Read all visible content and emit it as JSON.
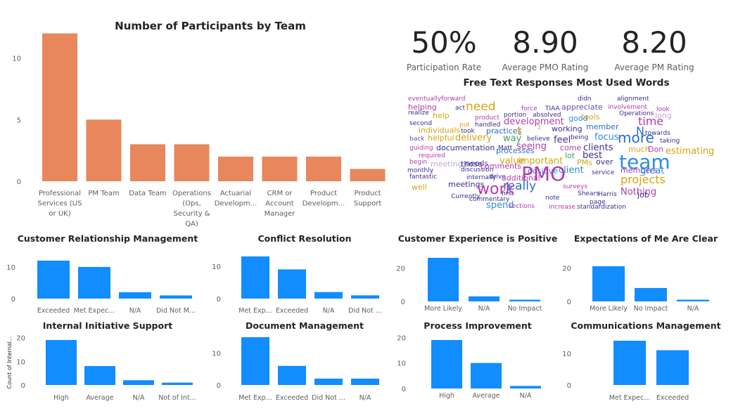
{
  "main_chart": {
    "type": "bar",
    "title": "Number of Participants by Team",
    "color": "#E8875B",
    "categories": [
      [
        "Professional",
        "Services (US",
        "or UK)"
      ],
      [
        "PM Team"
      ],
      [
        "Data Team"
      ],
      [
        "Operations",
        "(Ops,",
        "Security &",
        "QA)"
      ],
      [
        "Actuarial",
        "Developm..."
      ],
      [
        "CRM or",
        "Account",
        "Manager"
      ],
      [
        "Product",
        "Developm..."
      ],
      [
        "Product",
        "Support"
      ]
    ],
    "values": [
      12,
      5,
      3,
      3,
      2,
      2,
      2,
      1
    ],
    "yticks": [
      "0",
      "5",
      "10"
    ],
    "ylim": [
      0,
      13
    ]
  },
  "kpis": [
    {
      "value": "50%",
      "label": "Participation Rate"
    },
    {
      "value": "8.90",
      "label": "Average PMO Rating"
    },
    {
      "value": "8.20",
      "label": "Average PM Rating"
    }
  ],
  "word_cloud": {
    "title": "Free Text Responses Most Used Words",
    "words": [
      {
        "text": "eventually",
        "size": 9,
        "color": "#B33BAD"
      },
      {
        "text": "forward",
        "size": 9,
        "color": "#B33BAD"
      },
      {
        "text": "didn",
        "size": 9,
        "color": "#3B2D8F"
      },
      {
        "text": "alignment",
        "size": 9,
        "color": "#3B2D8F"
      },
      {
        "text": "helping",
        "size": 11,
        "color": "#B33BAD"
      },
      {
        "text": "act",
        "size": 9,
        "color": "#3B2D8F"
      },
      {
        "text": "need",
        "size": 17,
        "color": "#D4A514"
      },
      {
        "text": "force",
        "size": 9,
        "color": "#B33BAD"
      },
      {
        "text": "TIAA",
        "size": 9,
        "color": "#3B2D8F"
      },
      {
        "text": "appreciate",
        "size": 11,
        "color": "#6A4CA8"
      },
      {
        "text": "involvement",
        "size": 9,
        "color": "#B33BAD"
      },
      {
        "text": "look",
        "size": 9,
        "color": "#B33BAD"
      },
      {
        "text": "realize",
        "size": 9,
        "color": "#3B2D8F"
      },
      {
        "text": "help",
        "size": 11,
        "color": "#D4A514"
      },
      {
        "text": "product",
        "size": 9,
        "color": "#B33BAD"
      },
      {
        "text": "portion",
        "size": 9,
        "color": "#3B2D8F"
      },
      {
        "text": "absolved",
        "size": 9,
        "color": "#3B2D8F"
      },
      {
        "text": "tools",
        "size": 11,
        "color": "#D4A514"
      },
      {
        "text": "Operations",
        "size": 9,
        "color": "#3B2D8F"
      },
      {
        "text": "long",
        "size": 11,
        "color": "#C0A6E0"
      },
      {
        "text": "second",
        "size": 9,
        "color": "#3B2D8F"
      },
      {
        "text": "put",
        "size": 9,
        "color": "#D4A514"
      },
      {
        "text": "handled",
        "size": 9,
        "color": "#3B2D8F"
      },
      {
        "text": "development",
        "size": 13,
        "color": "#B33BAD"
      },
      {
        "text": "good",
        "size": 11,
        "color": "#2B8CE6"
      },
      {
        "text": "time",
        "size": 16,
        "color": "#B33BAD"
      },
      {
        "text": "individuals",
        "size": 11,
        "color": "#D4A514"
      },
      {
        "text": "took",
        "size": 9,
        "color": "#3B2D8F"
      },
      {
        "text": "practices",
        "size": 11,
        "color": "#2B6CC4"
      },
      {
        "text": "t",
        "size": 17,
        "color": "#D4A514"
      },
      {
        "text": "3",
        "size": 9,
        "color": "#D4A514"
      },
      {
        "text": "working",
        "size": 11,
        "color": "#3B2D8F"
      },
      {
        "text": "member",
        "size": 11,
        "color": "#2B6CC4"
      },
      {
        "text": "N",
        "size": 16,
        "color": "#2B6CC4"
      },
      {
        "text": "towards",
        "size": 9,
        "color": "#3B2D8F"
      },
      {
        "text": "back",
        "size": 9,
        "color": "#6A4CA8"
      },
      {
        "text": "helpful",
        "size": 11,
        "color": "#D4A514"
      },
      {
        "text": "delivery",
        "size": 13,
        "color": "#D4A514"
      },
      {
        "text": "way",
        "size": 13,
        "color": "#3DA55C"
      },
      {
        "text": "believe",
        "size": 9,
        "color": "#3B2D8F"
      },
      {
        "text": "being",
        "size": 9,
        "color": "#3B2D8F"
      },
      {
        "text": "focus",
        "size": 13,
        "color": "#2B8CE6"
      },
      {
        "text": "more",
        "size": 20,
        "color": "#2B6CC4"
      },
      {
        "text": "taking",
        "size": 9,
        "color": "#3B2D8F"
      },
      {
        "text": "guiding",
        "size": 9,
        "color": "#B33BAD"
      },
      {
        "text": "documentation",
        "size": 11,
        "color": "#3B2D8F"
      },
      {
        "text": "Matt",
        "size": 9,
        "color": "#3B2D8F"
      },
      {
        "text": "seeing",
        "size": 13,
        "color": "#B33BAD"
      },
      {
        "text": "feel",
        "size": 13,
        "color": "#3B2D8F"
      },
      {
        "text": "come",
        "size": 11,
        "color": "#B33BAD"
      },
      {
        "text": "clients",
        "size": 13,
        "color": "#3B2D8F"
      },
      {
        "text": "much",
        "size": 11,
        "color": "#D4A514"
      },
      {
        "text": "Don",
        "size": 11,
        "color": "#B33BAD"
      },
      {
        "text": "estimating",
        "size": 13,
        "color": "#D4A514"
      },
      {
        "text": "required",
        "size": 9,
        "color": "#B33BAD"
      },
      {
        "text": "processes",
        "size": 11,
        "color": "#2B6CC4"
      },
      {
        "text": "lot",
        "size": 11,
        "color": "#3DA55C"
      },
      {
        "text": "best",
        "size": 13,
        "color": "#3B2D8F"
      },
      {
        "text": "team",
        "size": 28,
        "color": "#2B8CE6"
      },
      {
        "text": "begin",
        "size": 9,
        "color": "#B33BAD"
      },
      {
        "text": "meeting",
        "size": 11,
        "color": "#C0A6E0"
      },
      {
        "text": "needs",
        "size": 11,
        "color": "#6A4CA8"
      },
      {
        "text": "value",
        "size": 13,
        "color": "#D4A514"
      },
      {
        "text": "important",
        "size": 13,
        "color": "#D4A514"
      },
      {
        "text": "PMs",
        "size": 11,
        "color": "#D4A514"
      },
      {
        "text": "over",
        "size": 11,
        "color": "#3B2D8F"
      },
      {
        "text": "those",
        "size": 11,
        "color": "#3B2D8F"
      },
      {
        "text": "comments",
        "size": 11,
        "color": "#B33BAD"
      },
      {
        "text": "positive",
        "size": 11,
        "color": "#2B8CE6"
      },
      {
        "text": "client",
        "size": 13,
        "color": "#2B8CE6"
      },
      {
        "text": "service",
        "size": 9,
        "color": "#3B2D8F"
      },
      {
        "text": "monthly",
        "size": 9,
        "color": "#3B2D8F"
      },
      {
        "text": "discussion",
        "size": 9,
        "color": "#3B2D8F"
      },
      {
        "text": "drive",
        "size": 9,
        "color": "#3B2D8F"
      },
      {
        "text": "members",
        "size": 11,
        "color": "#B33BAD"
      },
      {
        "text": "great",
        "size": 13,
        "color": "#2B8CE6"
      },
      {
        "text": "fantastic",
        "size": 9,
        "color": "#3B2D8F"
      },
      {
        "text": "internally",
        "size": 9,
        "color": "#3B2D8F"
      },
      {
        "text": "additional",
        "size": 11,
        "color": "#B33BAD"
      },
      {
        "text": "meetings",
        "size": 11,
        "color": "#3B2D8F"
      },
      {
        "text": "PMO",
        "size": 28,
        "color": "#B33BAD"
      },
      {
        "text": "surveys",
        "size": 9,
        "color": "#B33BAD"
      },
      {
        "text": "projects",
        "size": 16,
        "color": "#D4A514"
      },
      {
        "text": "well",
        "size": 11,
        "color": "#D4A514"
      },
      {
        "text": "really",
        "size": 17,
        "color": "#2B6CC4"
      },
      {
        "text": "first",
        "size": 9,
        "color": "#3B2D8F"
      },
      {
        "text": "Nothing",
        "size": 13,
        "color": "#B33BAD"
      },
      {
        "text": "job",
        "size": 11,
        "color": "#3B2D8F"
      },
      {
        "text": "work",
        "size": 22,
        "color": "#B33BAD"
      },
      {
        "text": "note",
        "size": 9,
        "color": "#3B2D8F"
      },
      {
        "text": "Shears",
        "size": 9,
        "color": "#3B2D8F"
      },
      {
        "text": "Harris",
        "size": 9,
        "color": "#3B2D8F"
      },
      {
        "text": "Currently",
        "size": 9,
        "color": "#3B2D8F"
      },
      {
        "text": "commentary",
        "size": 9,
        "color": "#3B2D8F"
      },
      {
        "text": "page",
        "size": 9,
        "color": "#3B2D8F"
      },
      {
        "text": "spend",
        "size": 13,
        "color": "#2B8CE6"
      },
      {
        "text": "sections",
        "size": 9,
        "color": "#B33BAD"
      },
      {
        "text": "increase",
        "size": 9,
        "color": "#B33BAD"
      },
      {
        "text": "standardization",
        "size": 9,
        "color": "#3B2D8F"
      }
    ]
  },
  "chart_data": [
    {
      "type": "bar",
      "title": "Customer Relationship Management",
      "categories": [
        "Exceeded",
        "Met Expec...",
        "N/A",
        "Did Not M..."
      ],
      "values": [
        12,
        10,
        2,
        1
      ],
      "yticks": [
        "0",
        "10"
      ],
      "ylim": [
        0,
        13.5
      ],
      "color": "#118DFF"
    },
    {
      "type": "bar",
      "title": "Conflict Resolution",
      "categories": [
        "Met Exp...",
        "Exceeded",
        "N/A",
        "Did Not ..."
      ],
      "values": [
        13,
        9,
        2,
        1
      ],
      "yticks": [
        "0",
        "10"
      ],
      "ylim": [
        0,
        14
      ],
      "color": "#118DFF"
    },
    {
      "type": "bar",
      "title": "Customer Experience is Positive",
      "categories": [
        "More Likely",
        "N/A",
        "No Impact"
      ],
      "values": [
        26,
        3,
        1
      ],
      "yticks": [
        "0",
        "20"
      ],
      "ylim": [
        0,
        27
      ],
      "color": "#118DFF"
    },
    {
      "type": "bar",
      "title": "Expectations of Me Are Clear",
      "categories": [
        "More Likely",
        "No Impact",
        "N/A"
      ],
      "values": [
        21,
        8,
        1
      ],
      "yticks": [
        "0",
        "20"
      ],
      "ylim": [
        0,
        22.5
      ],
      "color": "#118DFF"
    },
    {
      "type": "bar",
      "title": "Internal Initiative Support",
      "ylabel": "Count of Internal...",
      "categories": [
        "High",
        "Average",
        "N/A",
        "Not of Int..."
      ],
      "values": [
        19,
        8,
        2,
        1
      ],
      "yticks": [
        "0",
        "10",
        "20"
      ],
      "ylim": [
        0,
        21
      ],
      "color": "#118DFF"
    },
    {
      "type": "bar",
      "title": "Document Management",
      "categories": [
        "Met Exp...",
        "Exceeded",
        "Did Not ...",
        "N/A"
      ],
      "values": [
        15,
        6,
        2,
        2
      ],
      "yticks": [
        "0",
        "10"
      ],
      "ylim": [
        0,
        16
      ],
      "color": "#118DFF"
    },
    {
      "type": "bar",
      "title": "Process Improvement",
      "categories": [
        "High",
        "Average",
        "N/A"
      ],
      "values": [
        19,
        10,
        1
      ],
      "yticks": [
        "0",
        "10",
        "20"
      ],
      "ylim": [
        0,
        21
      ],
      "color": "#118DFF"
    },
    {
      "type": "bar",
      "title": "Communications Management",
      "categories": [
        "Met Expec...",
        "Exceeded"
      ],
      "values": [
        14,
        11
      ],
      "yticks": [
        "0",
        "10"
      ],
      "ylim": [
        0,
        15
      ],
      "color": "#118DFF"
    }
  ]
}
